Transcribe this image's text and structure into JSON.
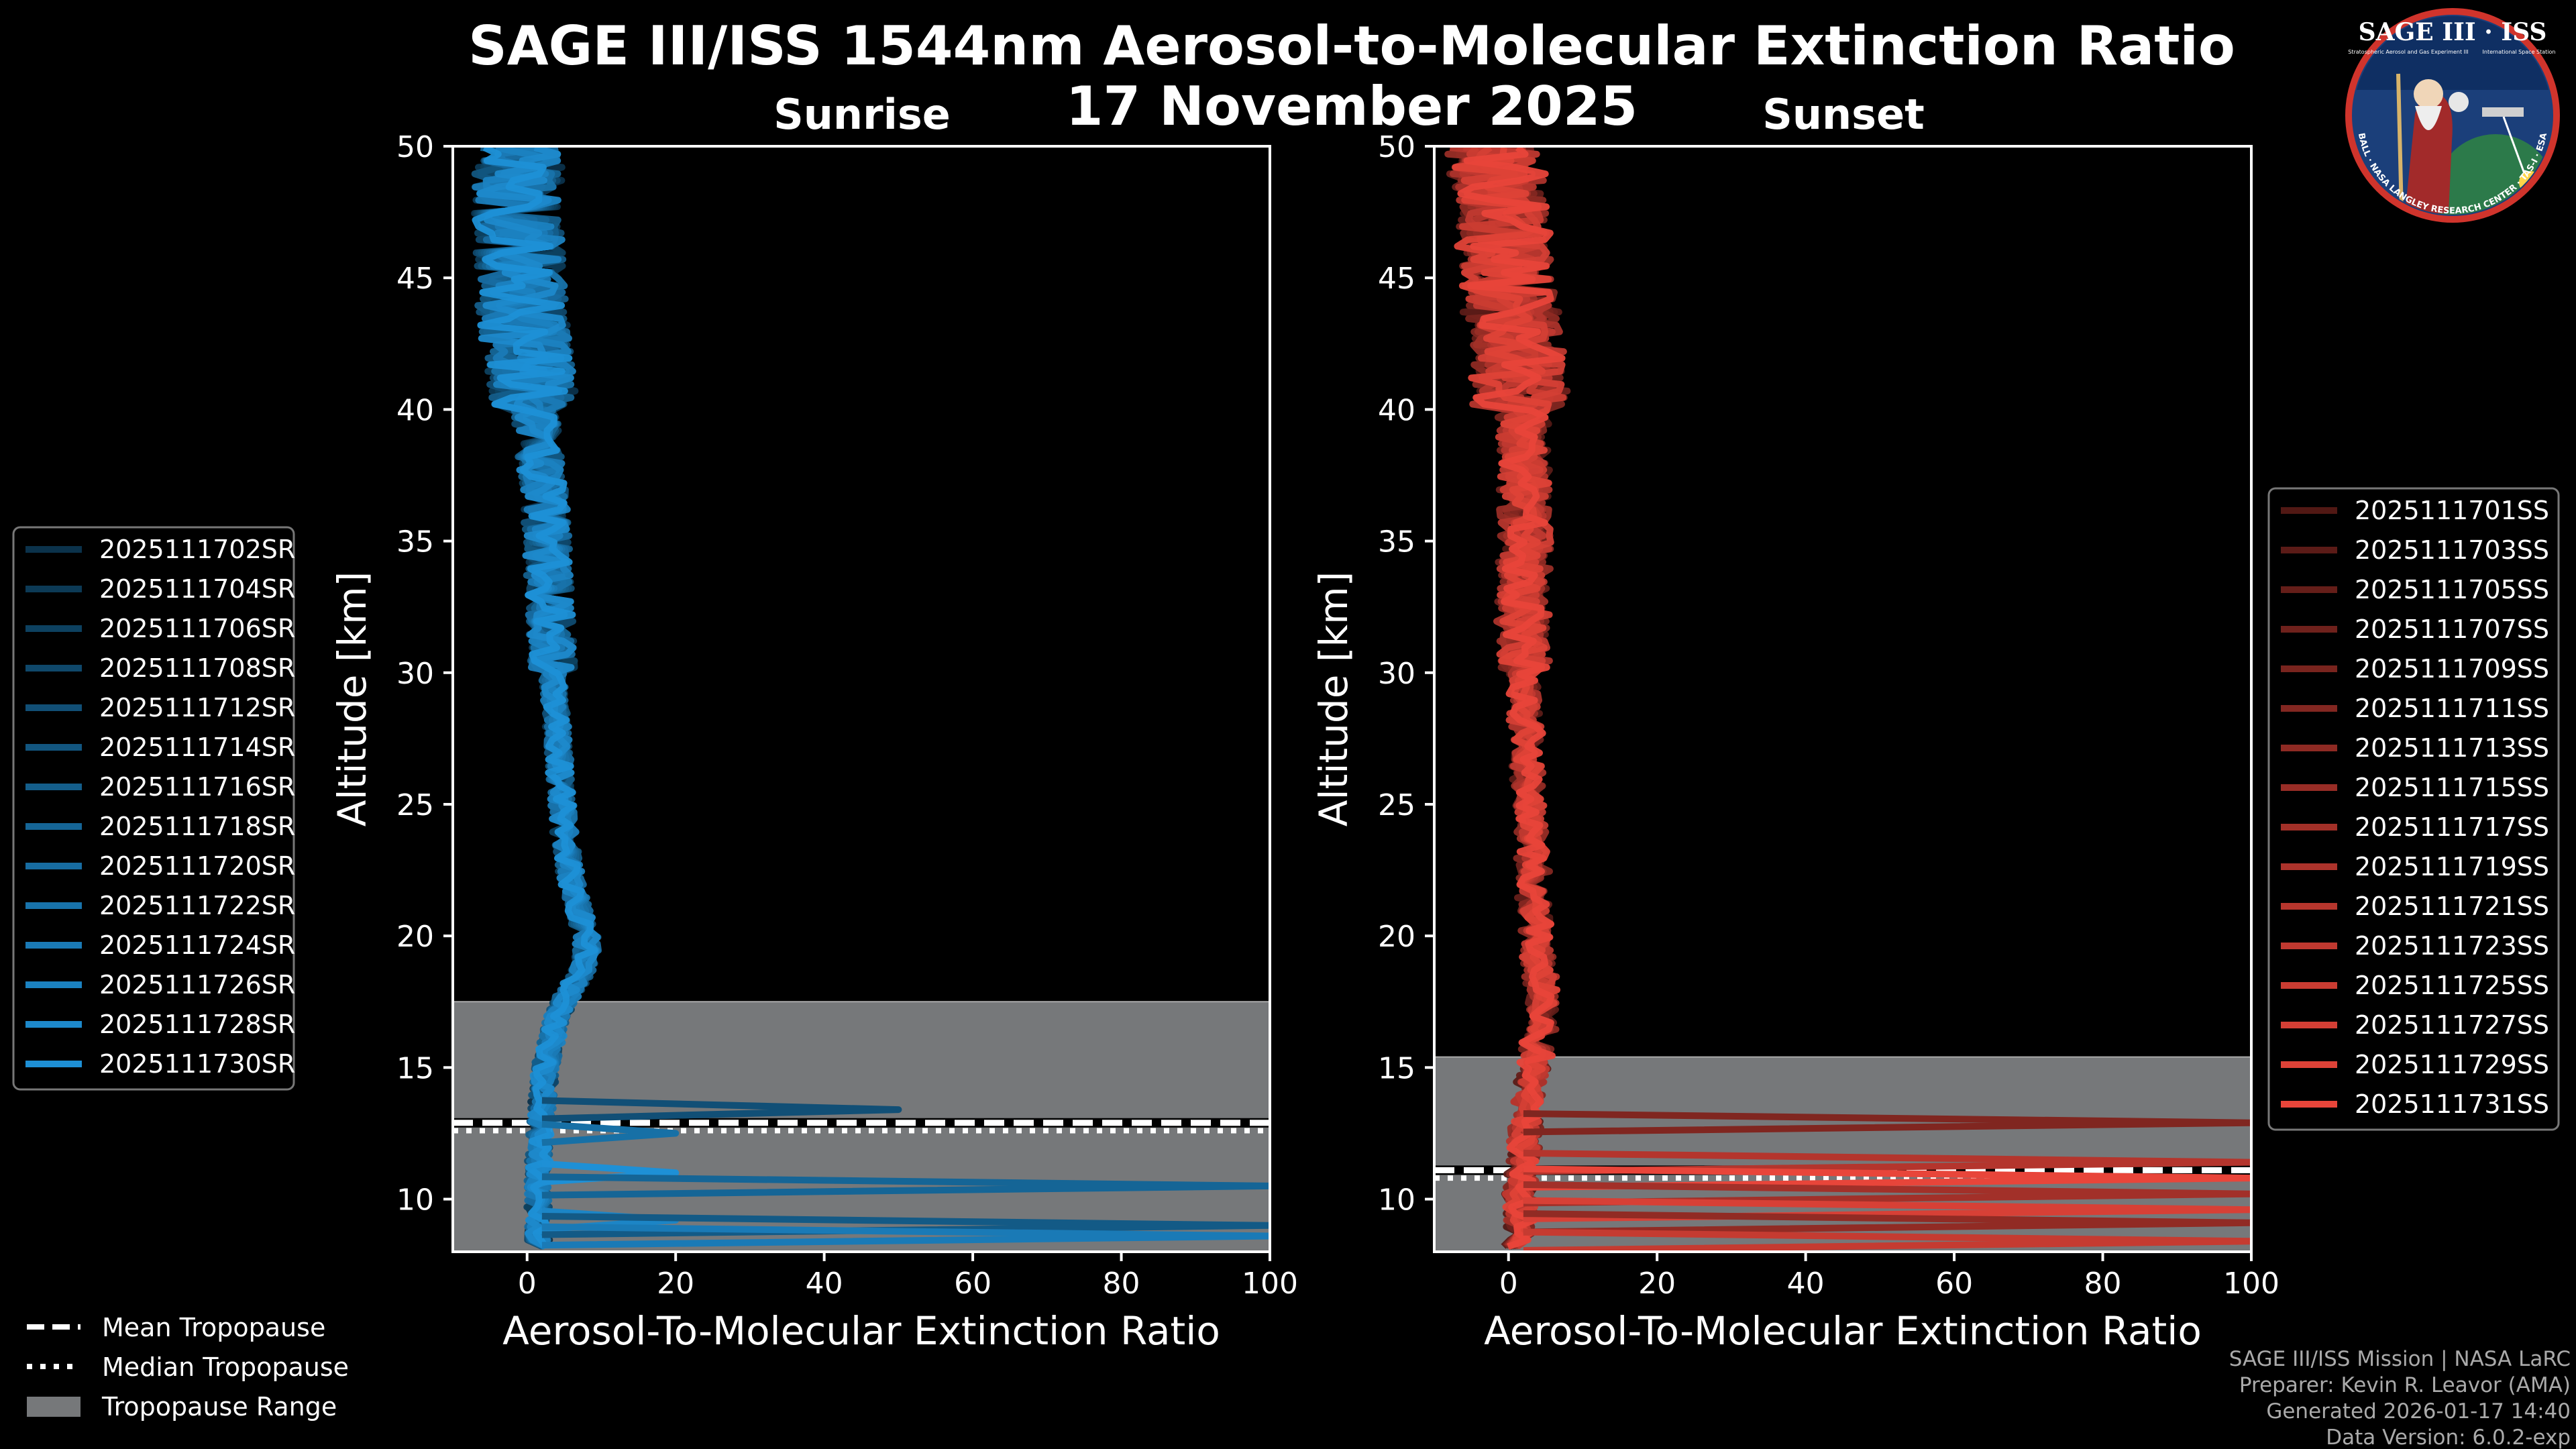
{
  "figure": {
    "title": "SAGE III/ISS 1544nm Aerosol-to-Molecular Extinction Ratio",
    "date": "17 November 2025",
    "credits": [
      "SAGE III/ISS Mission | NASA LaRC",
      "Preparer: Kevin R. Leavor (AMA)",
      "Generated 2026-01-17 14:40",
      "Data Version: 6.0.2-exp"
    ],
    "logo": {
      "title": "SAGE III · ISS",
      "subtitle_left": "Stratospheric Aerosol and Gas Experiment III",
      "subtitle_right": "International Space Station",
      "ring_text": "BALL · NASA LANGLEY RESEARCH CENTER · TAS-I · ESA"
    },
    "tropopause_legend": [
      "Mean Tropopause",
      "Median Tropopause",
      "Tropopause Range"
    ]
  },
  "chart_data": [
    {
      "type": "line",
      "panel": "sunrise",
      "title": "Sunrise",
      "xlabel": "Aerosol-To-Molecular Extinction Ratio",
      "ylabel": "Altitude [km]",
      "xlim": [
        -10,
        100
      ],
      "ylim": [
        8,
        50
      ],
      "xticks": [
        0,
        20,
        40,
        60,
        80,
        100
      ],
      "yticks": [
        10,
        15,
        20,
        25,
        30,
        35,
        40,
        45,
        50
      ],
      "color": "#1e90d6",
      "tropopause": {
        "min": 8,
        "max": 17.5,
        "mean": 12.9,
        "median": 12.6
      },
      "typical_profile": [
        [
          9,
          1.5
        ],
        [
          12,
          1.5
        ],
        [
          15,
          2.5
        ],
        [
          17,
          4
        ],
        [
          18,
          6
        ],
        [
          19,
          8
        ],
        [
          20,
          8
        ],
        [
          21,
          7
        ],
        [
          22,
          6
        ],
        [
          24,
          5
        ],
        [
          26,
          4.5
        ],
        [
          28,
          4
        ],
        [
          30,
          3.5
        ],
        [
          33,
          3
        ],
        [
          36,
          2.5
        ],
        [
          39,
          1.5
        ],
        [
          42,
          0
        ],
        [
          45,
          -1
        ],
        [
          48,
          -1.5
        ],
        [
          50,
          -1
        ]
      ],
      "outliers": [
        {
          "alt": 13.4,
          "value": 50
        },
        {
          "alt": 12.5,
          "value": 20
        },
        {
          "alt": 11.0,
          "value": 20
        },
        {
          "alt": 10.5,
          "value": 100
        },
        {
          "alt": 9.2,
          "value": 20
        },
        {
          "alt": 9.0,
          "value": 100
        },
        {
          "alt": 8.6,
          "value": 100
        }
      ],
      "series": [
        {
          "name": "2025111702SR"
        },
        {
          "name": "2025111704SR"
        },
        {
          "name": "2025111706SR"
        },
        {
          "name": "2025111708SR"
        },
        {
          "name": "2025111712SR"
        },
        {
          "name": "2025111714SR"
        },
        {
          "name": "2025111716SR"
        },
        {
          "name": "2025111718SR"
        },
        {
          "name": "2025111720SR"
        },
        {
          "name": "2025111722SR"
        },
        {
          "name": "2025111724SR"
        },
        {
          "name": "2025111726SR"
        },
        {
          "name": "2025111728SR"
        },
        {
          "name": "2025111730SR"
        }
      ]
    },
    {
      "type": "line",
      "panel": "sunset",
      "title": "Sunset",
      "xlabel": "Aerosol-To-Molecular Extinction Ratio",
      "ylabel": "Altitude [km]",
      "xlim": [
        -10,
        100
      ],
      "ylim": [
        8,
        50
      ],
      "xticks": [
        0,
        20,
        40,
        60,
        80,
        100
      ],
      "yticks": [
        10,
        15,
        20,
        25,
        30,
        35,
        40,
        45,
        50
      ],
      "color": "#e8453a",
      "tropopause": {
        "min": 8,
        "max": 15.4,
        "mean": 11.1,
        "median": 10.8
      },
      "typical_profile": [
        [
          9,
          1.5
        ],
        [
          12,
          2
        ],
        [
          14,
          3
        ],
        [
          16,
          4
        ],
        [
          17,
          4.5
        ],
        [
          18,
          4.5
        ],
        [
          19,
          4
        ],
        [
          21,
          3.5
        ],
        [
          24,
          3
        ],
        [
          27,
          2.5
        ],
        [
          30,
          2
        ],
        [
          33,
          2
        ],
        [
          36,
          2.5
        ],
        [
          39,
          2
        ],
        [
          42,
          1
        ],
        [
          45,
          0
        ],
        [
          48,
          -1
        ],
        [
          50,
          -2
        ]
      ],
      "outliers": [
        {
          "alt": 12.9,
          "value": 100
        },
        {
          "alt": 11.4,
          "value": 100
        },
        {
          "alt": 10.8,
          "value": 100
        },
        {
          "alt": 10.2,
          "value": 100
        },
        {
          "alt": 9.6,
          "value": 100
        },
        {
          "alt": 9.1,
          "value": 100
        },
        {
          "alt": 8.4,
          "value": 100
        }
      ],
      "series": [
        {
          "name": "2025111701SS"
        },
        {
          "name": "2025111703SS"
        },
        {
          "name": "2025111705SS"
        },
        {
          "name": "2025111707SS"
        },
        {
          "name": "2025111709SS"
        },
        {
          "name": "2025111711SS"
        },
        {
          "name": "2025111713SS"
        },
        {
          "name": "2025111715SS"
        },
        {
          "name": "2025111717SS"
        },
        {
          "name": "2025111719SS"
        },
        {
          "name": "2025111721SS"
        },
        {
          "name": "2025111723SS"
        },
        {
          "name": "2025111725SS"
        },
        {
          "name": "2025111727SS"
        },
        {
          "name": "2025111729SS"
        },
        {
          "name": "2025111731SS"
        }
      ]
    }
  ]
}
